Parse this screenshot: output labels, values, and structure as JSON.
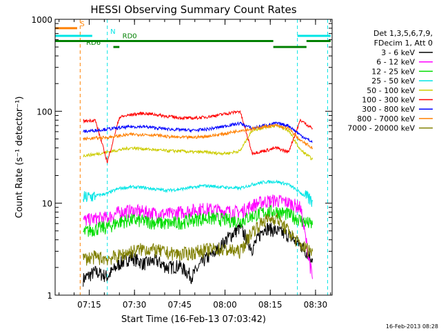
{
  "chart_data": {
    "type": "line",
    "title": "HESSI Observing Summary Count Rates",
    "xlabel": "Start Time (16-Feb-13 07:03:42)",
    "ylabel": "Count Rate (s⁻¹ detector⁻¹)",
    "yscale": "log",
    "ylim": [
      1,
      1000
    ],
    "xlim": [
      "07:03:42",
      "08:35:30"
    ],
    "x_ticks": [
      "07:15",
      "07:30",
      "07:45",
      "08:00",
      "08:15",
      "08:30"
    ],
    "y_ticks": [
      "1",
      "10",
      "100",
      "1000"
    ],
    "grid": false,
    "legend_position": "right",
    "legend_header": [
      "Det 1,3,5,6,7,9,",
      "FDecim 1, Att 0"
    ],
    "footer": "16-Feb-2013 08:28",
    "series": [
      {
        "name": "3 - 6 keV",
        "color": "#000000",
        "points": [
          [
            "07:13",
            1.5
          ],
          [
            "07:17",
            1.8
          ],
          [
            "07:21",
            1.6
          ],
          [
            "07:25",
            2.2
          ],
          [
            "07:29",
            2.6
          ],
          [
            "07:33",
            2.2
          ],
          [
            "07:37",
            2.4
          ],
          [
            "07:41",
            2.0
          ],
          [
            "07:45",
            2.1
          ],
          [
            "07:49",
            1.6
          ],
          [
            "07:53",
            2.4
          ],
          [
            "07:57",
            3.0
          ],
          [
            "08:01",
            4.2
          ],
          [
            "08:05",
            5.5
          ],
          [
            "08:09",
            3.2
          ],
          [
            "08:13",
            5.5
          ],
          [
            "08:17",
            5.0
          ],
          [
            "08:21",
            4.5
          ],
          [
            "08:25",
            3.5
          ],
          [
            "08:29",
            2.5
          ]
        ]
      },
      {
        "name": "6 - 12 keV",
        "color": "#ff00ff",
        "points": [
          [
            "07:13",
            6.5
          ],
          [
            "07:17",
            6.8
          ],
          [
            "07:21",
            7.0
          ],
          [
            "07:25",
            8.0
          ],
          [
            "07:29",
            8.3
          ],
          [
            "07:33",
            8.1
          ],
          [
            "07:37",
            7.8
          ],
          [
            "07:41",
            7.6
          ],
          [
            "07:45",
            8.0
          ],
          [
            "07:49",
            8.4
          ],
          [
            "07:53",
            8.7
          ],
          [
            "07:57",
            8.5
          ],
          [
            "08:01",
            8.2
          ],
          [
            "08:05",
            8.0
          ],
          [
            "08:09",
            9.5
          ],
          [
            "08:13",
            10.5
          ],
          [
            "08:17",
            10.8
          ],
          [
            "08:21",
            10.2
          ],
          [
            "08:25",
            9.0
          ],
          [
            "08:29",
            1.5
          ]
        ]
      },
      {
        "name": "12 - 25 keV",
        "color": "#00dd00",
        "points": [
          [
            "07:13",
            4.8
          ],
          [
            "07:17",
            5.3
          ],
          [
            "07:21",
            5.5
          ],
          [
            "07:25",
            6.3
          ],
          [
            "07:29",
            6.6
          ],
          [
            "07:33",
            6.4
          ],
          [
            "07:37",
            6.2
          ],
          [
            "07:41",
            6.0
          ],
          [
            "07:45",
            6.2
          ],
          [
            "07:49",
            6.6
          ],
          [
            "07:53",
            6.9
          ],
          [
            "07:57",
            6.8
          ],
          [
            "08:01",
            6.6
          ],
          [
            "08:05",
            6.4
          ],
          [
            "08:09",
            7.3
          ],
          [
            "08:13",
            8.0
          ],
          [
            "08:17",
            8.2
          ],
          [
            "08:21",
            7.6
          ],
          [
            "08:25",
            6.6
          ],
          [
            "08:29",
            5.8
          ]
        ]
      },
      {
        "name": "25 - 50 keV",
        "color": "#00e5e5",
        "points": [
          [
            "07:13",
            11.5
          ],
          [
            "07:17",
            12.0
          ],
          [
            "07:21",
            12.8
          ],
          [
            "07:25",
            14.5
          ],
          [
            "07:29",
            15.0
          ],
          [
            "07:33",
            14.8
          ],
          [
            "07:37",
            14.2
          ],
          [
            "07:41",
            13.8
          ],
          [
            "07:45",
            14.2
          ],
          [
            "07:49",
            14.8
          ],
          [
            "07:53",
            15.5
          ],
          [
            "07:57",
            15.2
          ],
          [
            "08:01",
            14.8
          ],
          [
            "08:05",
            14.5
          ],
          [
            "08:09",
            16.0
          ],
          [
            "08:13",
            17.0
          ],
          [
            "08:17",
            17.2
          ],
          [
            "08:21",
            16.0
          ],
          [
            "08:25",
            13.0
          ],
          [
            "08:29",
            10.5
          ]
        ]
      },
      {
        "name": "50 - 100 keV",
        "color": "#cccc00",
        "points": [
          [
            "07:13",
            33
          ],
          [
            "07:17",
            34
          ],
          [
            "07:21",
            36
          ],
          [
            "07:25",
            38
          ],
          [
            "07:29",
            40
          ],
          [
            "07:33",
            39
          ],
          [
            "07:37",
            38
          ],
          [
            "07:41",
            37
          ],
          [
            "07:45",
            37
          ],
          [
            "07:49",
            36
          ],
          [
            "07:53",
            36
          ],
          [
            "07:57",
            35
          ],
          [
            "08:01",
            35
          ],
          [
            "08:05",
            37
          ],
          [
            "08:09",
            62
          ],
          [
            "08:13",
            67
          ],
          [
            "08:17",
            70
          ],
          [
            "08:21",
            62
          ],
          [
            "08:25",
            38
          ],
          [
            "08:29",
            30
          ]
        ]
      },
      {
        "name": "100 - 300 keV",
        "color": "#ff0000",
        "points": [
          [
            "07:13",
            78
          ],
          [
            "07:17",
            80
          ],
          [
            "07:21",
            28
          ],
          [
            "07:25",
            86
          ],
          [
            "07:29",
            92
          ],
          [
            "07:33",
            95
          ],
          [
            "07:37",
            92
          ],
          [
            "07:41",
            88
          ],
          [
            "07:45",
            85
          ],
          [
            "07:49",
            84
          ],
          [
            "07:53",
            86
          ],
          [
            "07:57",
            90
          ],
          [
            "08:01",
            95
          ],
          [
            "08:05",
            100
          ],
          [
            "08:09",
            35
          ],
          [
            "08:13",
            37
          ],
          [
            "08:17",
            40
          ],
          [
            "08:21",
            36
          ],
          [
            "08:25",
            80
          ],
          [
            "08:29",
            65
          ]
        ]
      },
      {
        "name": "300 - 800 keV",
        "color": "#0000ff",
        "points": [
          [
            "07:13",
            60
          ],
          [
            "07:17",
            62
          ],
          [
            "07:21",
            64
          ],
          [
            "07:25",
            66
          ],
          [
            "07:29",
            68
          ],
          [
            "07:33",
            68
          ],
          [
            "07:37",
            66
          ],
          [
            "07:41",
            64
          ],
          [
            "07:45",
            63
          ],
          [
            "07:49",
            62
          ],
          [
            "07:53",
            63
          ],
          [
            "07:57",
            66
          ],
          [
            "08:01",
            70
          ],
          [
            "08:05",
            74
          ],
          [
            "08:09",
            65
          ],
          [
            "08:13",
            70
          ],
          [
            "08:17",
            74
          ],
          [
            "08:21",
            70
          ],
          [
            "08:25",
            55
          ],
          [
            "08:29",
            46
          ]
        ]
      },
      {
        "name": "800 - 7000 keV",
        "color": "#ff8000",
        "points": [
          [
            "07:13",
            50
          ],
          [
            "07:17",
            51
          ],
          [
            "07:21",
            52
          ],
          [
            "07:25",
            54
          ],
          [
            "07:29",
            56
          ],
          [
            "07:33",
            56
          ],
          [
            "07:37",
            55
          ],
          [
            "07:41",
            53
          ],
          [
            "07:45",
            52
          ],
          [
            "07:49",
            52
          ],
          [
            "07:53",
            53
          ],
          [
            "07:57",
            55
          ],
          [
            "08:01",
            58
          ],
          [
            "08:05",
            62
          ],
          [
            "08:09",
            64
          ],
          [
            "08:13",
            68
          ],
          [
            "08:17",
            70
          ],
          [
            "08:21",
            65
          ],
          [
            "08:25",
            48
          ],
          [
            "08:29",
            40
          ]
        ]
      },
      {
        "name": "7000 - 20000 keV",
        "color": "#808000",
        "points": [
          [
            "07:13",
            2.5
          ],
          [
            "07:17",
            2.6
          ],
          [
            "07:21",
            2.5
          ],
          [
            "07:25",
            2.7
          ],
          [
            "07:29",
            3.0
          ],
          [
            "07:33",
            3.2
          ],
          [
            "07:37",
            3.1
          ],
          [
            "07:41",
            2.9
          ],
          [
            "07:45",
            2.8
          ],
          [
            "07:49",
            2.9
          ],
          [
            "07:53",
            3.1
          ],
          [
            "07:57",
            3.2
          ],
          [
            "08:01",
            3.1
          ],
          [
            "08:05",
            3.0
          ],
          [
            "08:09",
            5.0
          ],
          [
            "08:13",
            6.5
          ],
          [
            "08:17",
            7.0
          ],
          [
            "08:21",
            5.0
          ],
          [
            "08:25",
            3.5
          ],
          [
            "08:29",
            3.0
          ]
        ]
      }
    ],
    "annotations": [
      {
        "text": "S",
        "color": "#ff8000"
      },
      {
        "text": "N",
        "color": "#00e5e5"
      },
      {
        "text": "RD0",
        "color": "#008000"
      },
      {
        "text": "RD6",
        "color": "#008000"
      }
    ],
    "event_bars": [
      {
        "label": "S",
        "color": "#ff8000",
        "y": 800,
        "segments": [
          [
            "07:03",
            "07:11"
          ]
        ]
      },
      {
        "label": "N",
        "color": "#00e5e5",
        "y": 660,
        "segments": [
          [
            "07:03",
            "07:16"
          ],
          [
            "08:24",
            "08:35"
          ]
        ]
      },
      {
        "label": "RD0",
        "color": "#008000",
        "y": 580,
        "segments": [
          [
            "07:03",
            "08:16"
          ],
          [
            "08:27",
            "08:35"
          ]
        ]
      },
      {
        "label": "RD6",
        "color": "#008000",
        "y": 500,
        "segments": [
          [
            "07:23",
            "07:25"
          ],
          [
            "08:16",
            "08:27"
          ]
        ]
      }
    ],
    "vlines": [
      {
        "x": "07:12",
        "color": "#ff8000"
      },
      {
        "x": "07:21",
        "color": "#00e5e5"
      },
      {
        "x": "08:24",
        "color": "#00e5e5"
      },
      {
        "x": "08:34",
        "color": "#00e5e5"
      }
    ]
  }
}
